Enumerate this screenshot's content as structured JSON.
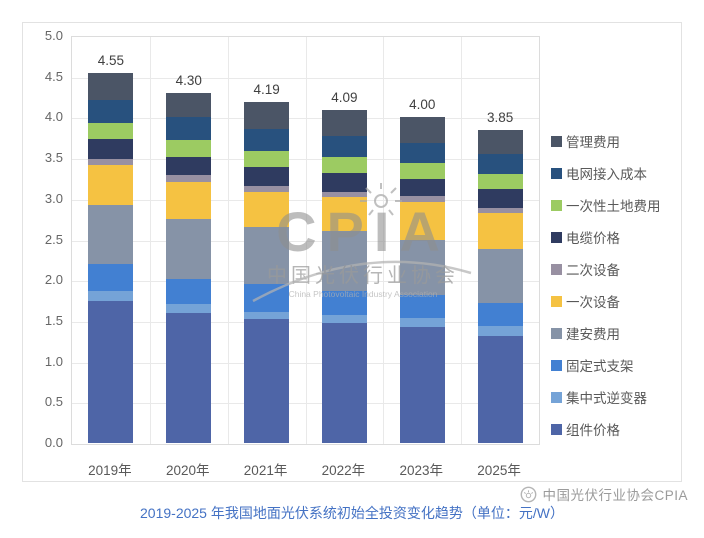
{
  "chart_data": {
    "type": "bar",
    "stacked": true,
    "categories": [
      "2019年",
      "2020年",
      "2021年",
      "2022年",
      "2023年",
      "2025年"
    ],
    "totals": [
      "4.55",
      "4.30",
      "4.19",
      "4.09",
      "4.00",
      "3.85"
    ],
    "ylim": [
      0,
      5.0
    ],
    "yticks": [
      "0.0",
      "0.5",
      "1.0",
      "1.5",
      "2.0",
      "2.5",
      "3.0",
      "3.5",
      "4.0",
      "4.5",
      "5.0"
    ],
    "grid": true,
    "legend_position": "right",
    "series": [
      {
        "name": "组件价格",
        "color": "#4e65a7",
        "values": [
          1.75,
          1.6,
          1.52,
          1.48,
          1.42,
          1.32
        ]
      },
      {
        "name": "集中式逆变器",
        "color": "#75a3d7",
        "values": [
          0.12,
          0.11,
          0.09,
          0.09,
          0.12,
          0.12
        ]
      },
      {
        "name": "固定式支架",
        "color": "#4280d2",
        "values": [
          0.33,
          0.31,
          0.34,
          0.3,
          0.28,
          0.28
        ]
      },
      {
        "name": "建安费用",
        "color": "#8693a7",
        "values": [
          0.73,
          0.73,
          0.7,
          0.73,
          0.68,
          0.66
        ]
      },
      {
        "name": "一次设备",
        "color": "#f5c242",
        "values": [
          0.48,
          0.46,
          0.44,
          0.42,
          0.46,
          0.44
        ]
      },
      {
        "name": "二次设备",
        "color": "#9890a2",
        "values": [
          0.08,
          0.08,
          0.07,
          0.07,
          0.07,
          0.07
        ]
      },
      {
        "name": "电缆价格",
        "color": "#2f3b60",
        "values": [
          0.24,
          0.23,
          0.23,
          0.23,
          0.22,
          0.23
        ]
      },
      {
        "name": "一次性土地费用",
        "color": "#9ccb62",
        "values": [
          0.2,
          0.2,
          0.2,
          0.19,
          0.19,
          0.18
        ]
      },
      {
        "name": "电网接入成本",
        "color": "#28517e",
        "values": [
          0.29,
          0.28,
          0.27,
          0.26,
          0.25,
          0.25
        ]
      },
      {
        "name": "管理费用",
        "color": "#4b5566",
        "values": [
          0.33,
          0.3,
          0.33,
          0.32,
          0.31,
          0.3
        ]
      }
    ]
  },
  "watermark": {
    "acronym": "CPIA",
    "cn_name": "中国光伏行业协会",
    "en_name": "China Photovoltaic Industry Association"
  },
  "caption": {
    "text": "2019-2025 年我国地面光伏系统初始全投资变化趋势（单位：元/W）",
    "color": "#4472c4"
  },
  "footer_badge": {
    "text": "中国光伏行业协会CPIA"
  }
}
